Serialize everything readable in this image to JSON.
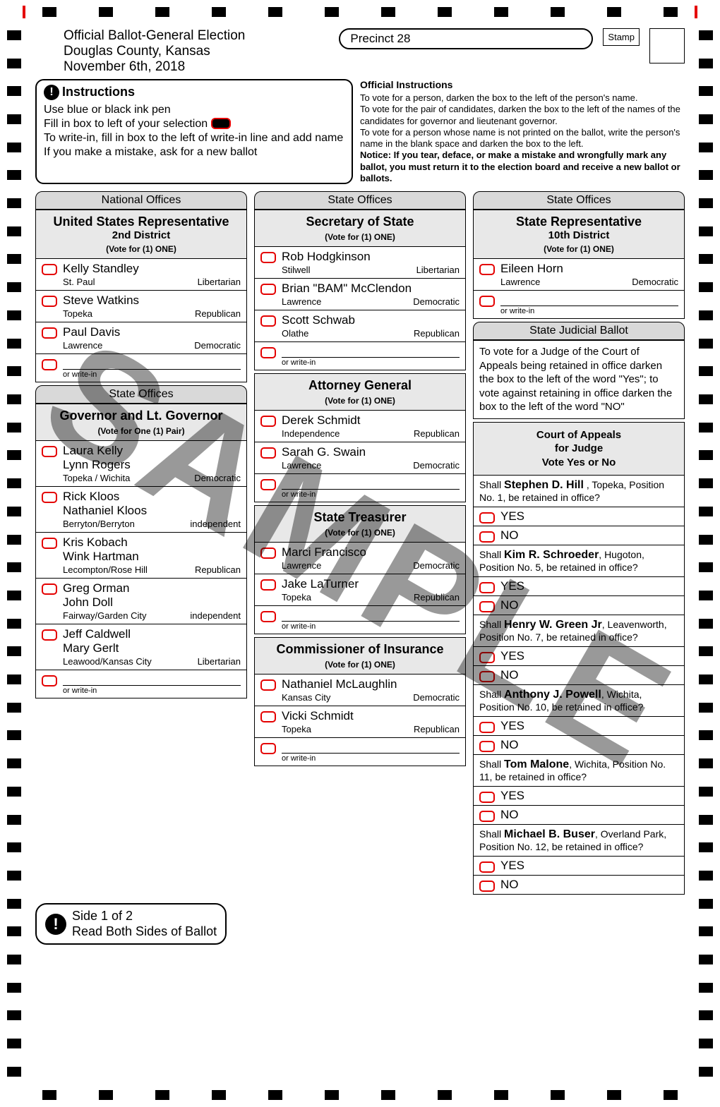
{
  "watermark": "SAMPLE",
  "header": {
    "line1": "Official Ballot-General Election",
    "line2": "Douglas County, Kansas",
    "line3": "November 6th, 2018",
    "precinct": "Precinct 28",
    "stamp_label": "Stamp"
  },
  "instructions": {
    "title": "Instructions",
    "lines": [
      "Use blue or black ink pen",
      "Fill in box to left of your selection",
      "To write-in, fill in box to the left of write-in line and add name",
      "If you make a mistake, ask for a new ballot"
    ]
  },
  "official": {
    "title": "Official Instructions",
    "body": [
      "To vote for a person, darken the box to the left of the person's name.",
      "To vote for the pair of candidates, darken the box to the left of the names of the candidates for governor and lieutenant governor.",
      "To vote for a person whose name is not printed on the ballot, write the person's name in the blank space and darken the box to the left."
    ],
    "notice": "Notice: If you tear, deface, or make a mistake and wrongfully mark any ballot, you must return it to the election board and receive a new ballot or ballots."
  },
  "sections": {
    "national": "National Offices",
    "state": "State Offices",
    "judicial": "State Judicial Ballot"
  },
  "write_in": "or write-in",
  "col1": [
    {
      "section": "national",
      "title": "United States Representative",
      "sub": "2nd District",
      "rule": "(Vote for (1) ONE)",
      "candidates": [
        {
          "name": "Kelly Standley",
          "loc": "St. Paul",
          "party": "Libertarian"
        },
        {
          "name": "Steve Watkins",
          "loc": "Topeka",
          "party": "Republican"
        },
        {
          "name": "Paul Davis",
          "loc": "Lawrence",
          "party": "Democratic"
        }
      ],
      "writein": true
    },
    {
      "section": "state",
      "title": "Governor and Lt. Governor",
      "sub": "",
      "rule": "(Vote for One (1) Pair)",
      "candidates": [
        {
          "name": "Laura Kelly",
          "name2": "Lynn Rogers",
          "loc": "Topeka / Wichita",
          "party": "Democratic"
        },
        {
          "name": "Rick Kloos",
          "name2": "Nathaniel Kloos",
          "loc": "Berryton/Berryton",
          "party": "independent"
        },
        {
          "name": "Kris Kobach",
          "name2": "Wink Hartman",
          "loc": "Lecompton/Rose Hill",
          "party": "Republican"
        },
        {
          "name": "Greg Orman",
          "name2": "John Doll",
          "loc": "Fairway/Garden City",
          "party": "independent"
        },
        {
          "name": "Jeff Caldwell",
          "name2": "Mary Gerlt",
          "loc": "Leawood/Kansas City",
          "party": "Libertarian"
        }
      ],
      "writein": true
    }
  ],
  "col2": [
    {
      "section": "state",
      "title": "Secretary of State",
      "sub": "",
      "rule": "(Vote for (1) ONE)",
      "candidates": [
        {
          "name": "Rob Hodgkinson",
          "loc": "Stilwell",
          "party": "Libertarian"
        },
        {
          "name": "Brian \"BAM\" McClendon",
          "loc": "Lawrence",
          "party": "Democratic"
        },
        {
          "name": "Scott Schwab",
          "loc": "Olathe",
          "party": "Republican"
        }
      ],
      "writein": true
    },
    {
      "title": "Attorney General",
      "sub": "",
      "rule": "(Vote for (1) ONE)",
      "candidates": [
        {
          "name": "Derek Schmidt",
          "loc": "Independence",
          "party": "Republican"
        },
        {
          "name": "Sarah G. Swain",
          "loc": "Lawrence",
          "party": "Democratic"
        }
      ],
      "writein": true
    },
    {
      "title": "State Treasurer",
      "sub": "",
      "rule": "(Vote for (1) ONE)",
      "candidates": [
        {
          "name": "Marci Francisco",
          "loc": "Lawrence",
          "party": "Democratic"
        },
        {
          "name": "Jake LaTurner",
          "loc": "Topeka",
          "party": "Republican"
        }
      ],
      "writein": true
    },
    {
      "title": "Commissioner of Insurance",
      "sub": "",
      "rule": "(Vote for (1) ONE)",
      "candidates": [
        {
          "name": "Nathaniel McLaughlin",
          "loc": "Kansas City",
          "party": "Democratic"
        },
        {
          "name": "Vicki Schmidt",
          "loc": "Topeka",
          "party": "Republican"
        }
      ],
      "writein": true
    }
  ],
  "col3_contest": {
    "section": "state",
    "title": "State Representative",
    "sub": "10th District",
    "rule": "(Vote for (1) ONE)",
    "candidates": [
      {
        "name": "Eileen Horn",
        "loc": "Lawrence",
        "party": "Democratic"
      }
    ],
    "writein": true
  },
  "judicial_intro": "To vote for a Judge of the Court of Appeals being retained in office darken the box to the left of the word \"Yes\"; to vote against retaining in office darken the box to the left of the word \"NO\"",
  "judge_header": {
    "l1": "Court of Appeals",
    "l2": "for Judge",
    "l3": "Vote Yes or No"
  },
  "judges": [
    {
      "prefix": "Shall ",
      "name": "Stephen D. Hill",
      "suffix": " , Topeka, Position No. 1, be retained in office?"
    },
    {
      "prefix": "Shall ",
      "name": "Kim R. Schroeder",
      "suffix": ", Hugoton, Position No. 5, be retained in office?"
    },
    {
      "prefix": "Shall ",
      "name": "Henry W. Green Jr",
      "suffix": ", Leavenworth, Position No. 7, be retained in office?"
    },
    {
      "prefix": "Shall ",
      "name": "Anthony J. Powell",
      "suffix": ", Wichita, Position No. 10, be retained in office?"
    },
    {
      "prefix": "Shall ",
      "name": "Tom Malone",
      "suffix": ", Wichita, Position No. 11, be retained in office?"
    },
    {
      "prefix": "Shall ",
      "name": "Michael B. Buser",
      "suffix": ", Overland Park, Position No. 12, be retained in office?"
    }
  ],
  "yes": "YES",
  "no": "NO",
  "footer": {
    "l1": "Side 1 of 2",
    "l2": "Read Both Sides of Ballot"
  }
}
